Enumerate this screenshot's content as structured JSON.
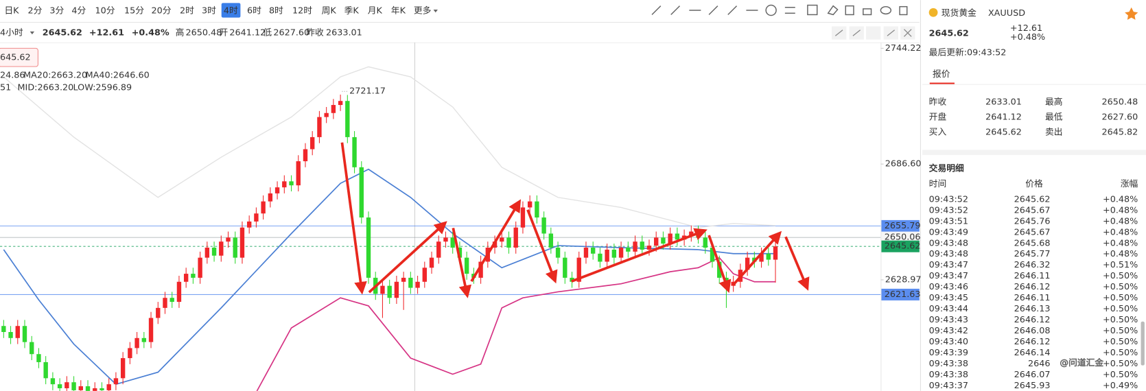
{
  "toolbar": {
    "periods": [
      "日K",
      "2分",
      "3分",
      "4分",
      "10分",
      "15分",
      "20分",
      "2时",
      "3时",
      "4时",
      "6时",
      "8时",
      "12时",
      "周K",
      "季K",
      "月K",
      "年K",
      "更多"
    ],
    "active_period": "4时"
  },
  "info_bar": {
    "interval": "4小时",
    "price": "2645.62",
    "change": "+12.61",
    "change_pct": "+0.48%",
    "stats": [
      {
        "label": "高",
        "value": "2650.48"
      },
      {
        "label": "开",
        "value": "2641.12"
      },
      {
        "label": "低",
        "value": "2627.60"
      },
      {
        "label": "昨收",
        "value": "2633.01"
      }
    ]
  },
  "chart_data": {
    "type": "candlestick",
    "up_color": "#f0262a",
    "down_color": "#2fd82f",
    "price_tag": "645.62",
    "ma_legend": [
      "24.86",
      "MA20:2663.20",
      "MA40:2646.60"
    ],
    "boll_legend": [
      "51",
      "MID:2663.20",
      "LOW:2596.89"
    ],
    "peak_label": "2721.17",
    "ylim": [
      2573.67,
      2747.13
    ],
    "yticks": [
      2744.22,
      {
        "value": 2686.6,
        "label": "2686.60"
      },
      2628.97
    ],
    "price_lines": [
      {
        "value": 2655.79,
        "color": "#5b8def"
      },
      {
        "value": 2650.06,
        "color": "#9aa0a6"
      },
      {
        "value": 2645.62,
        "color": "#1aa260"
      },
      {
        "value": 2621.63,
        "color": "#5b8def"
      }
    ],
    "candles": [
      [
        2606,
        2609,
        2600,
        2603
      ],
      [
        2603,
        2606,
        2597,
        2600
      ],
      [
        2600,
        2609,
        2597,
        2606
      ],
      [
        2606,
        2609,
        2595,
        2598
      ],
      [
        2598,
        2601,
        2589,
        2592
      ],
      [
        2592,
        2595,
        2585,
        2588
      ],
      [
        2588,
        2591,
        2577,
        2580
      ],
      [
        2580,
        2583,
        2574,
        2577
      ],
      [
        2577,
        2580,
        2572,
        2575
      ],
      [
        2575,
        2581,
        2572,
        2578
      ],
      [
        2578,
        2581,
        2571,
        2574
      ],
      [
        2574,
        2579,
        2571,
        2576
      ],
      [
        2576,
        2579,
        2570,
        2573
      ],
      [
        2573,
        2578,
        2570,
        2575
      ],
      [
        2575,
        2578,
        2571,
        2574
      ],
      [
        2574,
        2580,
        2571,
        2577
      ],
      [
        2577,
        2583,
        2574,
        2580
      ],
      [
        2580,
        2593,
        2577,
        2590
      ],
      [
        2590,
        2598,
        2587,
        2595
      ],
      [
        2595,
        2603,
        2592,
        2600
      ],
      [
        2600,
        2603,
        2595,
        2598
      ],
      [
        2598,
        2613,
        2595,
        2610
      ],
      [
        2610,
        2618,
        2607,
        2615
      ],
      [
        2615,
        2623,
        2612,
        2620
      ],
      [
        2620,
        2623,
        2615,
        2618
      ],
      [
        2618,
        2631,
        2615,
        2628
      ],
      [
        2628,
        2635,
        2625,
        2632
      ],
      [
        2632,
        2635,
        2627,
        2630
      ],
      [
        2630,
        2643,
        2627,
        2640
      ],
      [
        2640,
        2648,
        2637,
        2645
      ],
      [
        2645,
        2648,
        2638,
        2641
      ],
      [
        2641,
        2651,
        2638,
        2648
      ],
      [
        2648,
        2653,
        2645,
        2650
      ],
      [
        2650,
        2653,
        2637,
        2640
      ],
      [
        2640,
        2658,
        2637,
        2655
      ],
      [
        2655,
        2661,
        2652,
        2658
      ],
      [
        2658,
        2665,
        2655,
        2662
      ],
      [
        2662,
        2671,
        2659,
        2668
      ],
      [
        2668,
        2675,
        2665,
        2672
      ],
      [
        2672,
        2678,
        2669,
        2675
      ],
      [
        2675,
        2681,
        2672,
        2678
      ],
      [
        2678,
        2681,
        2673,
        2676
      ],
      [
        2676,
        2691,
        2673,
        2688
      ],
      [
        2688,
        2697,
        2685,
        2694
      ],
      [
        2694,
        2703,
        2691,
        2700
      ],
      [
        2700,
        2713,
        2697,
        2710
      ],
      [
        2710,
        2715,
        2707,
        2712
      ],
      [
        2712,
        2719,
        2709,
        2716
      ],
      [
        2716,
        2721.17,
        2713,
        2718
      ],
      [
        2718,
        2721,
        2697,
        2700
      ],
      [
        2700,
        2703,
        2682,
        2685
      ],
      [
        2685,
        2688,
        2657,
        2660
      ],
      [
        2660,
        2663,
        2627,
        2630
      ],
      [
        2630,
        2633,
        2619,
        2622
      ],
      [
        2622,
        2629,
        2610,
        2626
      ],
      [
        2626,
        2629,
        2617,
        2620
      ],
      [
        2620,
        2631,
        2617,
        2628
      ],
      [
        2628,
        2633,
        2614,
        2630
      ],
      [
        2630,
        2633,
        2622,
        2625
      ],
      [
        2625,
        2631,
        2622,
        2628
      ],
      [
        2628,
        2638,
        2625,
        2635
      ],
      [
        2635,
        2643,
        2632,
        2640
      ],
      [
        2640,
        2651,
        2637,
        2648
      ],
      [
        2648,
        2653,
        2645,
        2650
      ],
      [
        2650,
        2653,
        2642,
        2645
      ],
      [
        2645,
        2648,
        2637,
        2640
      ],
      [
        2640,
        2643,
        2629,
        2632
      ],
      [
        2632,
        2635,
        2627,
        2630
      ],
      [
        2630,
        2641,
        2627,
        2638
      ],
      [
        2638,
        2648,
        2635,
        2645
      ],
      [
        2645,
        2651,
        2642,
        2648
      ],
      [
        2648,
        2653,
        2645,
        2650
      ],
      [
        2650,
        2653,
        2642,
        2645
      ],
      [
        2645,
        2658,
        2642,
        2655
      ],
      [
        2655,
        2668,
        2652,
        2665
      ],
      [
        2665,
        2671,
        2662,
        2668
      ],
      [
        2668,
        2671,
        2657,
        2660
      ],
      [
        2660,
        2663,
        2649,
        2652
      ],
      [
        2652,
        2655,
        2642,
        2645
      ],
      [
        2645,
        2648,
        2637,
        2640
      ],
      [
        2640,
        2643,
        2627,
        2630
      ],
      [
        2630,
        2633,
        2625,
        2628
      ],
      [
        2628,
        2643,
        2625,
        2640
      ],
      [
        2640,
        2648,
        2637,
        2645
      ],
      [
        2645,
        2648,
        2639,
        2642
      ],
      [
        2642,
        2645,
        2635,
        2638
      ],
      [
        2638,
        2647,
        2635,
        2644
      ],
      [
        2644,
        2647,
        2637,
        2640
      ],
      [
        2640,
        2648,
        2637,
        2645
      ],
      [
        2645,
        2648,
        2640,
        2643
      ],
      [
        2643,
        2651,
        2640,
        2648
      ],
      [
        2648,
        2651,
        2641,
        2644
      ],
      [
        2644,
        2649,
        2641,
        2646
      ],
      [
        2646,
        2653,
        2643,
        2650
      ],
      [
        2650,
        2653,
        2644,
        2647
      ],
      [
        2647,
        2655,
        2644,
        2652
      ],
      [
        2652,
        2655,
        2646,
        2649
      ],
      [
        2649,
        2654,
        2646,
        2651
      ],
      [
        2651,
        2656,
        2648,
        2653
      ],
      [
        2653,
        2656,
        2647,
        2650
      ],
      [
        2650,
        2653,
        2642,
        2645
      ],
      [
        2645,
        2648,
        2635,
        2638
      ],
      [
        2638,
        2641,
        2627,
        2630
      ],
      [
        2630,
        2633,
        2615,
        2626
      ],
      [
        2626,
        2631,
        2623,
        2628
      ],
      [
        2628,
        2637,
        2625,
        2634
      ],
      [
        2634,
        2643,
        2631,
        2640
      ],
      [
        2640,
        2643,
        2635,
        2638
      ],
      [
        2638,
        2645,
        2635,
        2642
      ],
      [
        2642,
        2645,
        2636,
        2639
      ],
      [
        2639,
        2650.48,
        2627.6,
        2645.62
      ]
    ],
    "boll_x": [
      0,
      5,
      10,
      16,
      22,
      31,
      41,
      48,
      52,
      58,
      64,
      71,
      79,
      88,
      99,
      104,
      110
    ],
    "boll_mid": [
      2644,
      2619,
      2597,
      2577,
      2583,
      2615,
      2652,
      2677,
      2684,
      2670,
      2652,
      2635,
      2646,
      2645,
      2644,
      2642,
      2642
    ],
    "boll_upper": [
      2730,
      2715,
      2700,
      2685,
      2670,
      2690,
      2710,
      2730,
      2735,
      2730,
      2715,
      2685,
      2670,
      2665,
      2655,
      2657,
      2656
    ],
    "lower_x": [
      36,
      41,
      48,
      52,
      58,
      64,
      68,
      71,
      74,
      79,
      88,
      95,
      99,
      102,
      104,
      107,
      110
    ],
    "boll_lower": [
      2573,
      2605,
      2620,
      2616,
      2590,
      2582,
      2587,
      2615,
      2620,
      2623,
      2627,
      2633,
      2635,
      2640,
      2632,
      2628,
      2628
    ]
  },
  "side_panel": {
    "name": "现货黄金",
    "code": "XAUUSD",
    "price": "2645.62",
    "change": "+12.61",
    "change_pct": "+0.48%",
    "updated": "最后更新:09:43:52",
    "tab": "报价",
    "quote": [
      [
        "昨收",
        "2633.01",
        "最高",
        "2650.48"
      ],
      [
        "开盘",
        "2641.12",
        "最低",
        "2627.60"
      ],
      [
        "买入",
        "2645.62",
        "卖出",
        "2645.82"
      ]
    ],
    "trades_title": "交易明细",
    "trade_headers": [
      "时间",
      "价格",
      "涨幅"
    ],
    "trades": [
      [
        "09:43:52",
        "2645.62",
        "+0.48%"
      ],
      [
        "09:43:52",
        "2645.67",
        "+0.48%"
      ],
      [
        "09:43:51",
        "2645.76",
        "+0.48%"
      ],
      [
        "09:43:49",
        "2645.67",
        "+0.48%"
      ],
      [
        "09:43:48",
        "2645.68",
        "+0.48%"
      ],
      [
        "09:43:48",
        "2645.77",
        "+0.48%"
      ],
      [
        "09:43:47",
        "2646.32",
        "+0.51%"
      ],
      [
        "09:43:47",
        "2646.11",
        "+0.50%"
      ],
      [
        "09:43:46",
        "2646.12",
        "+0.50%"
      ],
      [
        "09:43:45",
        "2646.11",
        "+0.50%"
      ],
      [
        "09:43:44",
        "2646.13",
        "+0.50%"
      ],
      [
        "09:43:43",
        "2646.12",
        "+0.50%"
      ],
      [
        "09:43:42",
        "2646.08",
        "+0.50%"
      ],
      [
        "09:43:40",
        "2646.12",
        "+0.50%"
      ],
      [
        "09:43:39",
        "2646.14",
        "+0.50%"
      ],
      [
        "09:43:38",
        "2646",
        "+0.50%"
      ],
      [
        "09:43:38",
        "2646.07",
        "+0.50%"
      ],
      [
        "09:43:37",
        "2645.93",
        "+0.49%"
      ]
    ]
  },
  "watermark": "@问道汇金"
}
